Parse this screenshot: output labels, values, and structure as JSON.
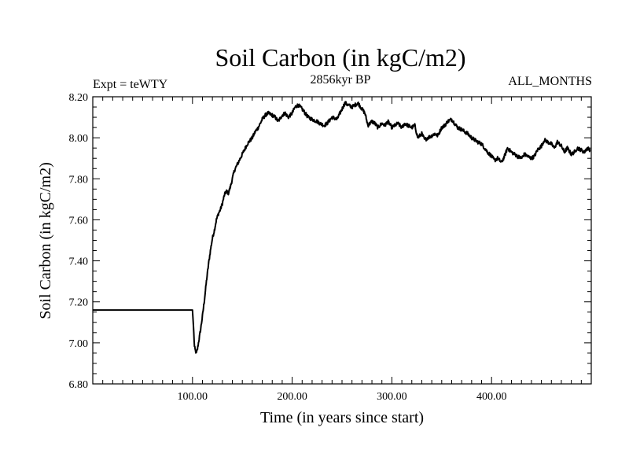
{
  "chart_data": {
    "type": "line",
    "title": "Soil Carbon (in kgC/m2)",
    "subtitle": "2856kyr BP",
    "left_label": "Expt = teWTY",
    "right_label": "ALL_MONTHS",
    "xlabel": "Time (in years since start)",
    "ylabel": "Soil Carbon (in kgC/m2)",
    "xlim": [
      0,
      500
    ],
    "ylim": [
      6.8,
      8.2
    ],
    "x_tick_labels": [
      {
        "value": 100,
        "label": "100.00"
      },
      {
        "value": 200,
        "label": "200.00"
      },
      {
        "value": 300,
        "label": "300.00"
      },
      {
        "value": 400,
        "label": "400.00"
      }
    ],
    "y_tick_labels": [
      {
        "value": 6.8,
        "label": "6.80"
      },
      {
        "value": 7.0,
        "label": "7.00"
      },
      {
        "value": 7.2,
        "label": "7.20"
      },
      {
        "value": 7.4,
        "label": "7.40"
      },
      {
        "value": 7.6,
        "label": "7.60"
      },
      {
        "value": 7.8,
        "label": "7.80"
      },
      {
        "value": 8.0,
        "label": "8.00"
      },
      {
        "value": 8.2,
        "label": "8.20"
      }
    ],
    "series": [
      {
        "name": "Soil Carbon",
        "color": "#000000",
        "x": [
          0,
          100,
          101,
          102,
          103,
          104,
          105,
          106,
          108,
          110,
          112,
          114,
          116,
          118,
          120,
          122,
          124,
          126,
          128,
          130,
          132,
          134,
          136,
          138,
          140,
          142,
          145,
          148,
          152,
          155,
          160,
          163,
          166,
          170,
          173,
          176,
          180,
          183,
          186,
          190,
          193,
          196,
          200,
          203,
          206,
          210,
          213,
          216,
          220,
          225,
          228,
          232,
          235,
          240,
          245,
          248,
          250,
          253,
          256,
          260,
          263,
          266,
          270,
          273,
          276,
          280,
          283,
          286,
          290,
          293,
          296,
          300,
          303,
          306,
          310,
          313,
          316,
          320,
          323,
          326,
          330,
          333,
          336,
          340,
          343,
          346,
          350,
          353,
          356,
          360,
          363,
          366,
          370,
          373,
          376,
          380,
          383,
          386,
          390,
          393,
          396,
          400,
          403,
          406,
          410,
          413,
          416,
          420,
          423,
          426,
          430,
          433,
          436,
          440,
          443,
          446,
          450,
          453,
          456,
          460,
          463,
          466,
          470,
          473,
          476,
          480,
          483,
          486,
          490,
          493,
          496,
          499
        ],
        "y": [
          7.16,
          7.16,
          7.08,
          6.98,
          6.96,
          6.95,
          6.97,
          7.0,
          7.06,
          7.13,
          7.21,
          7.3,
          7.38,
          7.45,
          7.51,
          7.55,
          7.6,
          7.63,
          7.65,
          7.68,
          7.72,
          7.74,
          7.73,
          7.76,
          7.8,
          7.84,
          7.87,
          7.9,
          7.94,
          7.97,
          8.0,
          8.03,
          8.05,
          8.09,
          8.11,
          8.12,
          8.11,
          8.1,
          8.08,
          8.11,
          8.12,
          8.1,
          8.12,
          8.15,
          8.16,
          8.14,
          8.12,
          8.1,
          8.09,
          8.08,
          8.07,
          8.06,
          8.07,
          8.1,
          8.09,
          8.12,
          8.14,
          8.17,
          8.16,
          8.15,
          8.16,
          8.17,
          8.14,
          8.12,
          8.06,
          8.08,
          8.07,
          8.05,
          8.07,
          8.06,
          8.08,
          8.05,
          8.06,
          8.07,
          8.05,
          8.07,
          8.06,
          8.05,
          8.06,
          8.0,
          8.02,
          7.99,
          8.0,
          8.01,
          8.02,
          8.01,
          8.05,
          8.06,
          8.08,
          8.09,
          8.07,
          8.05,
          8.04,
          8.03,
          8.02,
          8.0,
          7.99,
          7.98,
          7.97,
          7.95,
          7.93,
          7.91,
          7.89,
          7.9,
          7.88,
          7.91,
          7.95,
          7.93,
          7.92,
          7.91,
          7.9,
          7.92,
          7.91,
          7.9,
          7.91,
          7.94,
          7.96,
          7.99,
          7.98,
          7.97,
          7.95,
          7.98,
          7.96,
          7.93,
          7.95,
          7.92,
          7.93,
          7.95,
          7.94,
          7.93,
          7.95,
          7.94
        ]
      }
    ]
  }
}
